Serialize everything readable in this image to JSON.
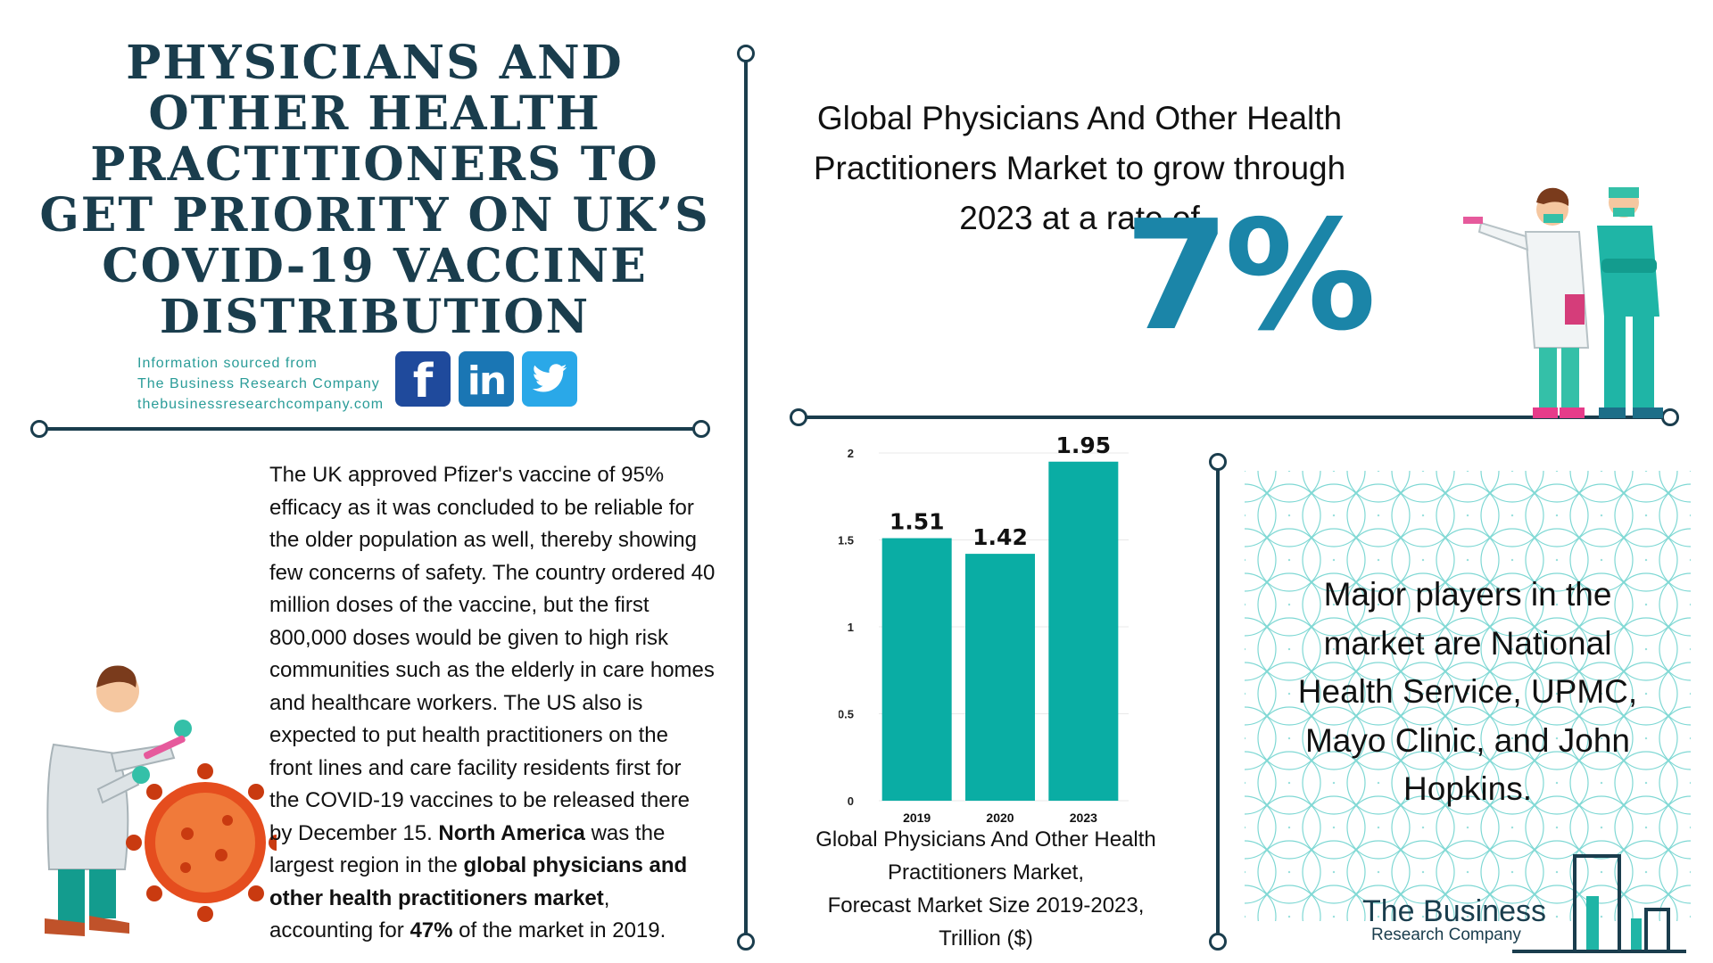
{
  "headline": "PHYSICIANS AND OTHER HEALTH PRACTITIONERS TO GET PRIORITY ON UK’S COVID-19 VACCINE DISTRIBUTION",
  "source": {
    "line1": "Information sourced from",
    "line2": "The Business Research Company",
    "line3": "thebusinessresearchcompany.com"
  },
  "social": {
    "facebook": "f",
    "linkedin": "in"
  },
  "body_text": {
    "p1": "The UK approved Pfizer's vaccine of 95% efficacy as it was concluded to be reliable for the older population as well, thereby showing few concerns of safety. The country ordered 40 million doses of the vaccine, but the first 800,000 doses would be given to high risk communities such as the elderly in care homes and healthcare workers. The US also is expected to put health practitioners on the front lines and care facility residents first for the COVID-19 vaccines to be released there by December 15. ",
    "b1": "North America",
    "p2": " was the largest region in the ",
    "b2": "global physicians and other health practitioners market",
    "p3": ", accounting for ",
    "b3": "47%",
    "p4": " of the market in 2019."
  },
  "growth": {
    "text": "Global Physicians And Other Health Practitioners Market to grow through 2023 at a rate of",
    "rate": "7%"
  },
  "chart_data": {
    "type": "bar",
    "categories": [
      "2019",
      "2020",
      "2023"
    ],
    "values": [
      1.51,
      1.42,
      1.95
    ],
    "value_labels": [
      "1.51",
      "1.42",
      "1.95"
    ],
    "yticks": [
      "0",
      "0.5",
      "1",
      "1.5",
      "2"
    ],
    "ylim": [
      0,
      2
    ],
    "title": "Global Physicians And Other Health Practitioners Market, Forecast Market Size 2019-2023, Trillion ($)",
    "bar_color": "#0aada4"
  },
  "chart_caption": {
    "line1": "Global Physicians And Other Health",
    "line2": "Practitioners Market,",
    "line3": "Forecast Market Size 2019-2023,",
    "line4": "Trillion ($)"
  },
  "players": {
    "text": "Major players in the market are National Health Service, UPMC, Mayo Clinic, and John Hopkins."
  },
  "logo": {
    "line1": "The Business",
    "line2": "Research Company"
  },
  "colors": {
    "navy": "#1a3d4d",
    "teal": "#0aada4",
    "rate_blue": "#1b85a8"
  }
}
